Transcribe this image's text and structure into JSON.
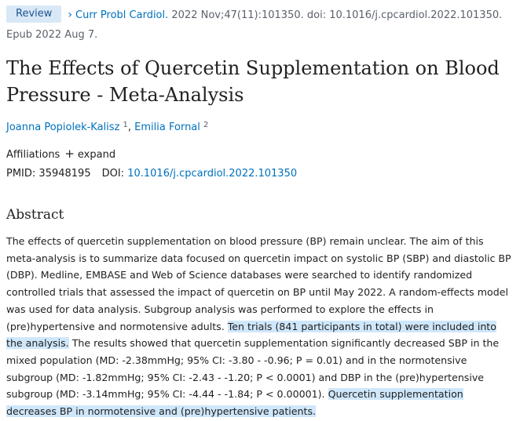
{
  "citation": {
    "badge": "Review",
    "journal": "Curr Probl Cardiol.",
    "details": "2022 Nov;47(11):101350. doi: 10.1016/j.cpcardiol.2022.101350. Epub 2022 Aug 7."
  },
  "article": {
    "title": "The Effects of Quercetin Supplementation on Blood Pressure - Meta-Analysis",
    "authors": [
      {
        "name": "Joanna Popiolek-Kalisz",
        "ref": "1"
      },
      {
        "name": "Emilia Fornal",
        "ref": "2"
      }
    ],
    "affiliations_label": "Affiliations",
    "expand_label": "expand",
    "pmid_label": "PMID:",
    "pmid": "35948195",
    "doi_label": "DOI:",
    "doi": "10.1016/j.cpcardiol.2022.101350"
  },
  "abstract": {
    "heading": "Abstract",
    "part1": "The effects of quercetin supplementation on blood pressure (BP) remain unclear. The aim of this meta-analysis is to summarize data focused on quercetin impact on systolic BP (SBP) and diastolic BP (DBP). Medline, EMBASE and Web of Science databases were searched to identify randomized controlled trials that assessed the impact of quercetin on BP until May 2022. A random-effects model was used for data analysis. Subgroup analysis was performed to explore the effects in (pre)hypertensive and normotensive adults.",
    "highlight1": "Ten trials (841 participants in total) were included into the analysis.",
    "part2": "The results showed that quercetin supplementation significantly decreased SBP in the mixed population (MD: -2.38mmHg; 95% CI: -3.80 - -0.96; P = 0.01) and in the normotensive subgroup (MD: -1.82mmHg; 95% CI: -2.43 - -1.20; P < 0.0001) and DBP in the (pre)hypertensive subgroup (MD: -3.14mmHg; 95% CI: -4.44 - -1.84; P < 0.00001).",
    "highlight2": "Quercetin supplementation decreases BP in normotensive and (pre)hypertensive patients."
  },
  "icons": {
    "chevron": "chevron-right-icon",
    "plus": "plus-icon"
  },
  "colors": {
    "link": "#0071bc",
    "badge_bg": "#d9e8f6",
    "highlight": "#cfe7fb"
  }
}
